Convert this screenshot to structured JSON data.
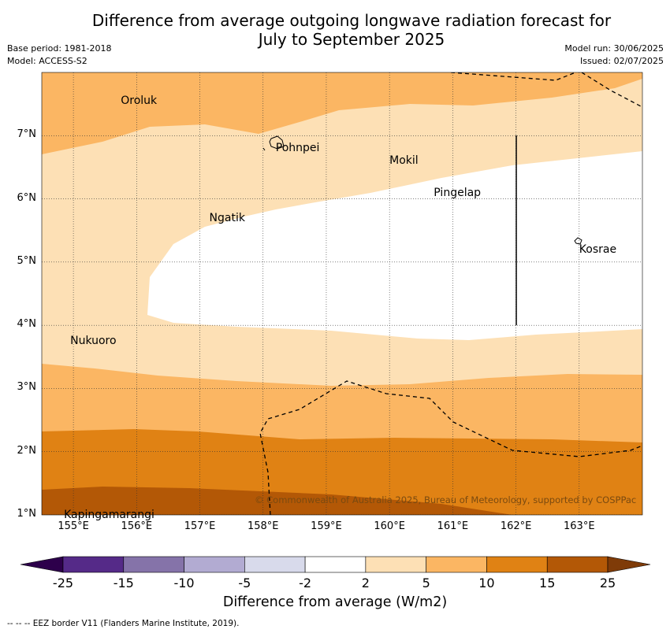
{
  "title_line1": "Difference from average outgoing longwave radiation forecast for",
  "title_line2": "July to September 2025",
  "meta": {
    "base_period": "Base period: 1981-2018",
    "model": "Model: ACCESS-S2",
    "model_run": "Model run: 30/06/2025",
    "issued": "Issued: 02/07/2025"
  },
  "axes": {
    "lon_ticks": [
      "155°E",
      "156°E",
      "157°E",
      "158°E",
      "159°E",
      "160°E",
      "161°E",
      "162°E",
      "163°E"
    ],
    "lat_ticks": [
      "7°N",
      "6°N",
      "5°N",
      "4°N",
      "3°N",
      "2°N",
      "1°N"
    ],
    "lon_range": [
      154.5,
      164.0
    ],
    "lat_range": [
      1.0,
      8.0
    ]
  },
  "places": [
    {
      "name": "Oroluk",
      "lon": 155.75,
      "lat": 7.65
    },
    {
      "name": "Pohnpei",
      "lon": 158.2,
      "lat": 6.9
    },
    {
      "name": "Mokil",
      "lon": 160.0,
      "lat": 6.7
    },
    {
      "name": "Pingelap",
      "lon": 160.7,
      "lat": 6.2
    },
    {
      "name": "Ngatik",
      "lon": 157.15,
      "lat": 5.8
    },
    {
      "name": "Kosrae",
      "lon": 163.0,
      "lat": 5.3
    },
    {
      "name": "Nukuoro",
      "lon": 154.95,
      "lat": 3.85
    },
    {
      "name": "Kapingamarangi",
      "lon": 154.85,
      "lat": 1.1
    }
  ],
  "copyright": "© Commonwealth of Australia 2025, Bureau of Meteorology, supported by COSPPac",
  "colorbar": {
    "labels": [
      "-25",
      "-15",
      "-10",
      "-5",
      "-2",
      "2",
      "5",
      "10",
      "15",
      "25"
    ],
    "colors": [
      "#552a88",
      "#8573a9",
      "#b2abd2",
      "#d8daeb",
      "#ffffff",
      "#fde0b5",
      "#fbb663",
      "#e08214",
      "#b35806"
    ],
    "extend_low_color": "#2d004b",
    "extend_high_color": "#7f3b08",
    "title": "Difference from average (W/m2)"
  },
  "footer": "--  --  -- EEZ border V11 (Flanders Marine Institute, 2019)."
}
